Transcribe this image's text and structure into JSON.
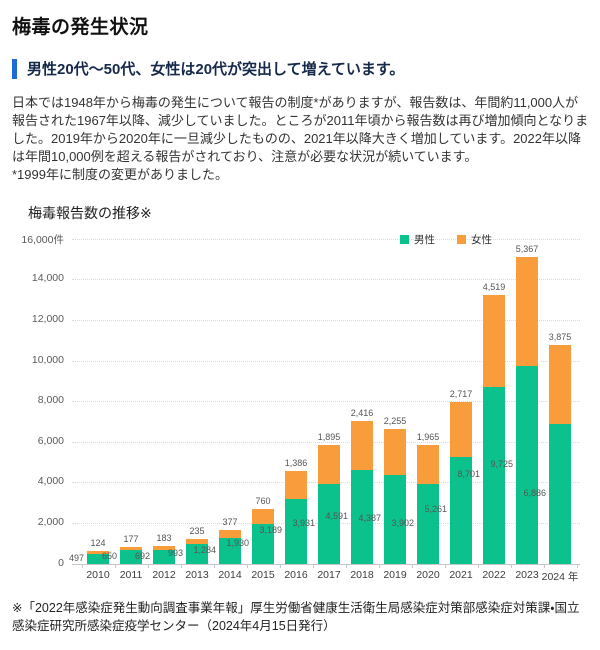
{
  "header": {
    "title": "梅毒の発生状況",
    "subtitle": "男性20代～50代、女性は20代が突出して増えています。"
  },
  "body": {
    "paragraph": "日本では1948年から梅毒の発生について報告の制度*がありますが、報告数は、年間約11,000人が報告された1967年以降、減少していました。ところが2011年頃から報告数は再び増加傾向となりました。2019年から2020年に一旦減少したものの、2021年以降大きく増加しています。2022年以降は年間10,000例を超える報告がされており、注意が必要な状況が続いています。",
    "note": "*1999年に制度の変更がありました。"
  },
  "chart_data": {
    "type": "bar",
    "stacked": true,
    "title": "梅毒報告数の推移※",
    "unit_label": "件",
    "categories": [
      "2010",
      "2011",
      "2012",
      "2013",
      "2014",
      "2015",
      "2016",
      "2017",
      "2018",
      "2019",
      "2020",
      "2021",
      "2022",
      "2023",
      "2024"
    ],
    "x_axis_suffix": "年",
    "series": [
      {
        "name": "男性",
        "color": "#0bc18c",
        "values": [
          497,
          650,
          692,
          993,
          1284,
          1930,
          3189,
          3931,
          4591,
          4387,
          3902,
          5261,
          8701,
          9725,
          6886
        ]
      },
      {
        "name": "女性",
        "color": "#f99d3c",
        "values": [
          124,
          177,
          183,
          235,
          377,
          760,
          1386,
          1895,
          2416,
          2255,
          1965,
          2717,
          4519,
          5367,
          3875
        ]
      }
    ],
    "ylim": [
      0,
      16000
    ],
    "y_tick_step": 2000,
    "y_ticks": [
      "0",
      "2,000",
      "4,000",
      "6,000",
      "8,000",
      "10,000",
      "12,000",
      "14,000",
      "16,000件"
    ],
    "grid": true,
    "legend_position": "top-right"
  },
  "footer": {
    "source": "※「2022年感染症発生動向調査事業年報」厚生労働省健康生活衛生局感染症対策部感染症対策課・国立感染症研究所感染症疫学センター（2024年4月15日発行）"
  },
  "colors": {
    "accent_blue": "#1f6bd3",
    "male": "#0bc18c",
    "female": "#f99d3c"
  }
}
